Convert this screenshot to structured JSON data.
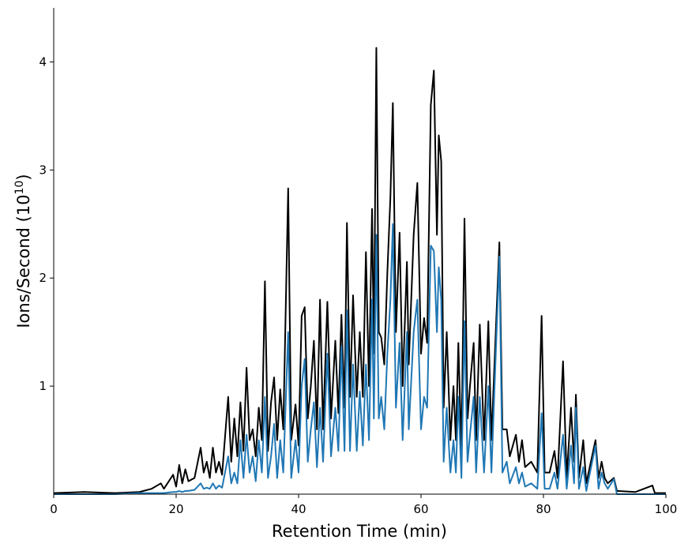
{
  "chart_data": {
    "type": "line",
    "xlabel": "Retention Time (min)",
    "ylabel": [
      "Ions/Second (10",
      "10",
      ")"
    ],
    "xlim": [
      0,
      100
    ],
    "xticks": [
      0,
      20,
      40,
      60,
      80,
      100
    ],
    "ylim": [
      0,
      4.5
    ],
    "yticks": [
      1,
      2,
      3,
      4
    ],
    "x": [
      0,
      5,
      10,
      14,
      16,
      17.5,
      18,
      19.5,
      20,
      20.5,
      21,
      21.5,
      22,
      23,
      24,
      24.5,
      25,
      25.5,
      26,
      26.5,
      27,
      27.5,
      28.5,
      29,
      29.5,
      30,
      30.5,
      31,
      31.5,
      32,
      32.5,
      33,
      33.5,
      34,
      34.5,
      35,
      35.5,
      36,
      36.5,
      37,
      37.5,
      38.3,
      38.8,
      39.5,
      40,
      40.5,
      41,
      41.5,
      42,
      42.5,
      43,
      43.5,
      44,
      44.7,
      45.3,
      46,
      46.5,
      47,
      47.5,
      47.9,
      48.4,
      48.9,
      49.5,
      50,
      50.5,
      51,
      51.5,
      52,
      52.3,
      52.7,
      53.1,
      53.5,
      54,
      54.5,
      55,
      55.4,
      55.9,
      56.5,
      57,
      57.7,
      58,
      58.8,
      59.4,
      60,
      60.5,
      61,
      61.6,
      62.1,
      62.6,
      62.9,
      63.3,
      63.7,
      64.2,
      64.8,
      65.3,
      65.7,
      66.1,
      66.6,
      67.1,
      67.6,
      68,
      68.6,
      69,
      69.6,
      70.3,
      71,
      71.5,
      72.8,
      73.3,
      74,
      74.5,
      75.5,
      76,
      76.5,
      77,
      78,
      79,
      79.7,
      80.2,
      81,
      81.8,
      82.3,
      83.2,
      83.8,
      84.5,
      85,
      85.3,
      85.8,
      86.5,
      87,
      88.5,
      89,
      89.5,
      90,
      90.5,
      91.5,
      92,
      95,
      97.8,
      98.2,
      100
    ],
    "series": [
      {
        "color": "#000000",
        "values": [
          0.01,
          0.02,
          0.01,
          0.02,
          0.05,
          0.1,
          0.05,
          0.18,
          0.07,
          0.27,
          0.1,
          0.23,
          0.12,
          0.15,
          0.43,
          0.2,
          0.3,
          0.15,
          0.43,
          0.2,
          0.3,
          0.18,
          0.9,
          0.3,
          0.7,
          0.35,
          0.85,
          0.4,
          1.17,
          0.5,
          0.6,
          0.35,
          0.8,
          0.5,
          1.97,
          0.4,
          0.85,
          1.08,
          0.5,
          0.97,
          0.6,
          2.83,
          0.5,
          0.83,
          0.45,
          1.65,
          1.73,
          0.7,
          1.0,
          1.42,
          0.6,
          1.8,
          0.6,
          1.78,
          0.7,
          1.42,
          0.75,
          1.66,
          0.8,
          2.51,
          0.9,
          1.84,
          0.9,
          1.5,
          0.9,
          2.24,
          1.0,
          2.64,
          1.3,
          4.13,
          1.5,
          1.45,
          1.2,
          2.05,
          2.75,
          3.62,
          1.5,
          2.42,
          1.0,
          2.15,
          1.2,
          2.4,
          2.88,
          1.3,
          1.63,
          1.4,
          3.6,
          3.92,
          2.4,
          3.32,
          3.08,
          0.8,
          1.5,
          0.5,
          1.0,
          0.5,
          1.4,
          0.4,
          2.55,
          0.7,
          1.0,
          1.4,
          0.5,
          1.57,
          0.5,
          1.6,
          0.5,
          2.33,
          0.6,
          0.6,
          0.35,
          0.55,
          0.3,
          0.5,
          0.25,
          0.3,
          0.2,
          1.65,
          0.2,
          0.2,
          0.4,
          0.15,
          1.23,
          0.15,
          0.8,
          0.3,
          0.92,
          0.15,
          0.5,
          0.1,
          0.5,
          0.15,
          0.3,
          0.15,
          0.1,
          0.15,
          0.03,
          0.02,
          0.08,
          0.01,
          0.01
        ]
      },
      {
        "color": "#1f77b4",
        "values": [
          0,
          0,
          0,
          0.01,
          0.01,
          0.01,
          0.01,
          0.02,
          0.02,
          0.03,
          0.02,
          0.03,
          0.03,
          0.04,
          0.1,
          0.05,
          0.06,
          0.05,
          0.1,
          0.05,
          0.08,
          0.06,
          0.35,
          0.1,
          0.2,
          0.1,
          0.5,
          0.15,
          0.55,
          0.2,
          0.35,
          0.12,
          0.5,
          0.2,
          0.9,
          0.15,
          0.35,
          0.65,
          0.15,
          0.5,
          0.2,
          1.5,
          0.15,
          0.5,
          0.2,
          1.0,
          1.25,
          0.3,
          0.6,
          0.85,
          0.25,
          0.8,
          0.3,
          1.3,
          0.35,
          0.8,
          0.4,
          1.37,
          0.4,
          1.7,
          0.4,
          1.2,
          0.4,
          0.95,
          0.45,
          1.2,
          0.5,
          1.8,
          0.7,
          2.4,
          0.7,
          0.9,
          0.6,
          1.3,
          1.8,
          2.5,
          0.8,
          1.4,
          0.5,
          1.5,
          0.6,
          1.5,
          1.8,
          0.6,
          0.9,
          0.8,
          2.3,
          2.25,
          1.5,
          2.1,
          1.8,
          0.3,
          0.8,
          0.2,
          0.5,
          0.2,
          0.9,
          0.15,
          1.6,
          0.3,
          0.55,
          0.9,
          0.2,
          0.9,
          0.2,
          1.0,
          0.2,
          2.2,
          0.2,
          0.3,
          0.1,
          0.25,
          0.1,
          0.2,
          0.07,
          0.1,
          0.05,
          0.75,
          0.05,
          0.05,
          0.2,
          0.05,
          0.55,
          0.05,
          0.45,
          0.1,
          0.8,
          0.05,
          0.25,
          0.03,
          0.45,
          0.05,
          0.2,
          0.1,
          0.05,
          0.14,
          0,
          0,
          0,
          0,
          0
        ]
      }
    ]
  }
}
